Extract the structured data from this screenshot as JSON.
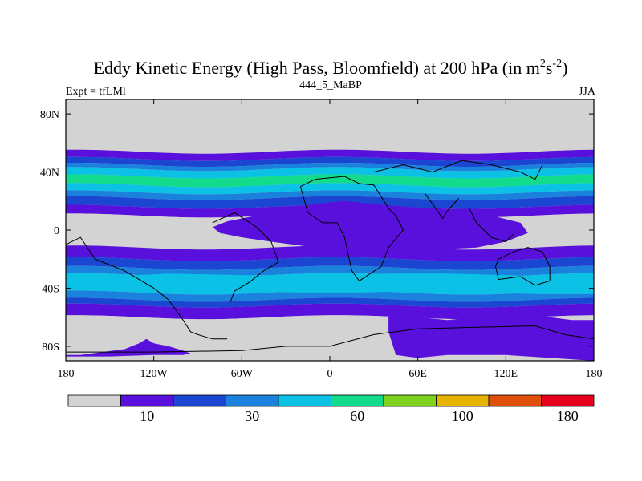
{
  "chart_data": {
    "type": "heatmap",
    "title": "Eddy Kinetic Energy (High Pass, Bloomfield) at 200 hPa (in m",
    "title_unit_sup1": "2",
    "title_unit_s": "s",
    "title_unit_sup2": "-2",
    "title_close": ")",
    "subtitle_center": "444_5_MaBP",
    "subtitle_left": "Expt = tfLMl",
    "subtitle_right": "JJA",
    "lon_range": [
      -180,
      180
    ],
    "lat_range": [
      -90,
      90
    ],
    "x_ticks": [
      {
        "value": -180,
        "label": "180"
      },
      {
        "value": -120,
        "label": "120W"
      },
      {
        "value": -60,
        "label": "60W"
      },
      {
        "value": 0,
        "label": "0"
      },
      {
        "value": 60,
        "label": "60E"
      },
      {
        "value": 120,
        "label": "120E"
      },
      {
        "value": 180,
        "label": "180"
      }
    ],
    "y_ticks": [
      {
        "value": 80,
        "label": "80N"
      },
      {
        "value": 40,
        "label": "40N"
      },
      {
        "value": 0,
        "label": "0"
      },
      {
        "value": -40,
        "label": "40S"
      },
      {
        "value": -80,
        "label": "80S"
      }
    ],
    "levels": [
      10,
      20,
      30,
      45,
      60,
      80,
      100,
      140,
      180
    ],
    "colors": [
      "#d3d3d3",
      "#5a10dc",
      "#1a46d2",
      "#1a82dc",
      "#0cc1e6",
      "#12dc8c",
      "#7ed21e",
      "#e6b400",
      "#e0500a",
      "#e6001e"
    ],
    "colorbar_labels": [
      {
        "index": 1,
        "label": "10"
      },
      {
        "index": 3,
        "label": "30"
      },
      {
        "index": 5,
        "label": "60"
      },
      {
        "index": 7,
        "label": "100"
      },
      {
        "index": 9,
        "label": "180"
      }
    ],
    "zonal_bands": [
      {
        "lat_min": 54,
        "lat_max": 90,
        "level": 0
      },
      {
        "lat_min": 49,
        "lat_max": 54,
        "level": 1
      },
      {
        "lat_min": 45,
        "lat_max": 49,
        "level": 2
      },
      {
        "lat_min": 42,
        "lat_max": 45,
        "level": 3
      },
      {
        "lat_min": 37,
        "lat_max": 42,
        "level": 4
      },
      {
        "lat_min": 31,
        "lat_max": 37,
        "level": 5
      },
      {
        "lat_min": 26,
        "lat_max": 31,
        "level": 4
      },
      {
        "lat_min": 22,
        "lat_max": 26,
        "level": 3
      },
      {
        "lat_min": 16,
        "lat_max": 22,
        "level": 2
      },
      {
        "lat_min": 10,
        "lat_max": 16,
        "level": 1
      },
      {
        "lat_min": -12,
        "lat_max": 10,
        "level": 0
      },
      {
        "lat_min": -20,
        "lat_max": -12,
        "level": 1
      },
      {
        "lat_min": -26,
        "lat_max": -20,
        "level": 2
      },
      {
        "lat_min": -31,
        "lat_max": -26,
        "level": 3
      },
      {
        "lat_min": -43,
        "lat_max": -31,
        "level": 4
      },
      {
        "lat_min": -48,
        "lat_max": -43,
        "level": 3
      },
      {
        "lat_min": -52,
        "lat_max": -48,
        "level": 2
      },
      {
        "lat_min": -60,
        "lat_max": -52,
        "level": 1
      },
      {
        "lat_min": -90,
        "lat_max": -60,
        "level": 0
      }
    ],
    "regions": [
      {
        "name": "subtropical-jet-plume",
        "level": 1,
        "lons": [
          -40,
          -10,
          10,
          40,
          80,
          110,
          130,
          135,
          120,
          100,
          60,
          20,
          -10,
          -40,
          -60,
          -75,
          -80,
          -70,
          -40
        ],
        "lats": [
          12,
          18,
          20,
          17,
          14,
          10,
          5,
          -2,
          -8,
          -12,
          -14,
          -14,
          -12,
          -8,
          -5,
          -2,
          2,
          6,
          12
        ]
      },
      {
        "name": "south-indian-jet-plume",
        "level": 1,
        "lons": [
          40,
          60,
          80,
          100,
          130,
          150,
          165,
          180,
          180,
          150,
          120,
          100,
          80,
          60,
          45,
          40
        ],
        "lats": [
          -55,
          -60,
          -62,
          -60,
          -58,
          -60,
          -62,
          -62,
          -90,
          -88,
          -86,
          -86,
          -86,
          -88,
          -86,
          -70
        ]
      },
      {
        "name": "antarctic-ridge-west",
        "level": 1,
        "lons": [
          -180,
          -170,
          -155,
          -140,
          -130,
          -125,
          -120,
          -110,
          -100,
          -95,
          -100,
          -120,
          -150,
          -180
        ],
        "lats": [
          -86,
          -86,
          -84,
          -82,
          -78,
          -75,
          -78,
          -80,
          -83,
          -85,
          -86,
          -86,
          -87,
          -87
        ]
      },
      {
        "name": "southern-cyan-core",
        "level": 4,
        "lons": [
          -150,
          -110,
          -60,
          -10,
          40,
          80,
          120,
          150,
          180,
          180,
          140,
          100,
          60,
          20,
          -20,
          -80,
          -130,
          -150
        ],
        "lats": [
          -32,
          -30,
          -31,
          -31,
          -30,
          -30,
          -31,
          -32,
          -32,
          -44,
          -44,
          -43,
          -42,
          -43,
          -43,
          -42,
          -42,
          -40
        ]
      }
    ]
  },
  "coastlines_label": "continent outlines"
}
